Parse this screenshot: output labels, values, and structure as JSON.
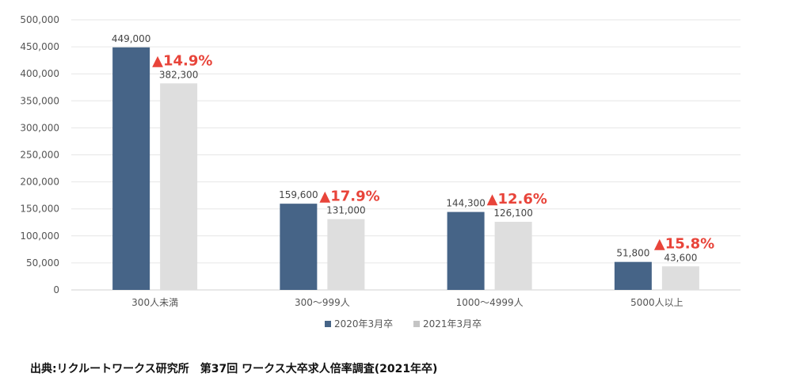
{
  "chart_data": {
    "type": "bar",
    "categories": [
      "300人未満",
      "300〜999人",
      "1000〜4999人",
      "5000人以上"
    ],
    "series": [
      {
        "name": "2020年3月卒",
        "values": [
          449000,
          159600,
          144300,
          51800
        ],
        "labels": [
          "449,000",
          "159,600",
          "144,300",
          "51,800"
        ],
        "color": "#466487"
      },
      {
        "name": "2021年3月卒",
        "values": [
          382300,
          131000,
          126100,
          43600
        ],
        "labels": [
          "382,300",
          "131,000",
          "126,100",
          "43,600"
        ],
        "color": "#dedede"
      }
    ],
    "changes": [
      "▲14.9%",
      "▲17.9%",
      "▲12.6%",
      "▲15.8%"
    ],
    "ylim": [
      0,
      500000
    ],
    "yticks": [
      0,
      50000,
      100000,
      150000,
      200000,
      250000,
      300000,
      350000,
      400000,
      450000,
      500000
    ],
    "ytick_labels": [
      "0",
      "50,000",
      "100,000",
      "150,000",
      "200,000",
      "250,000",
      "300,000",
      "350,000",
      "400,000",
      "450,000",
      "500,000"
    ],
    "grid": true,
    "legend": "bottom",
    "change_color": "#e8443a"
  },
  "source": "出典:リクルートワークス研究所　第37回 ワークス大卒求人倍率調査(2021年卒)"
}
